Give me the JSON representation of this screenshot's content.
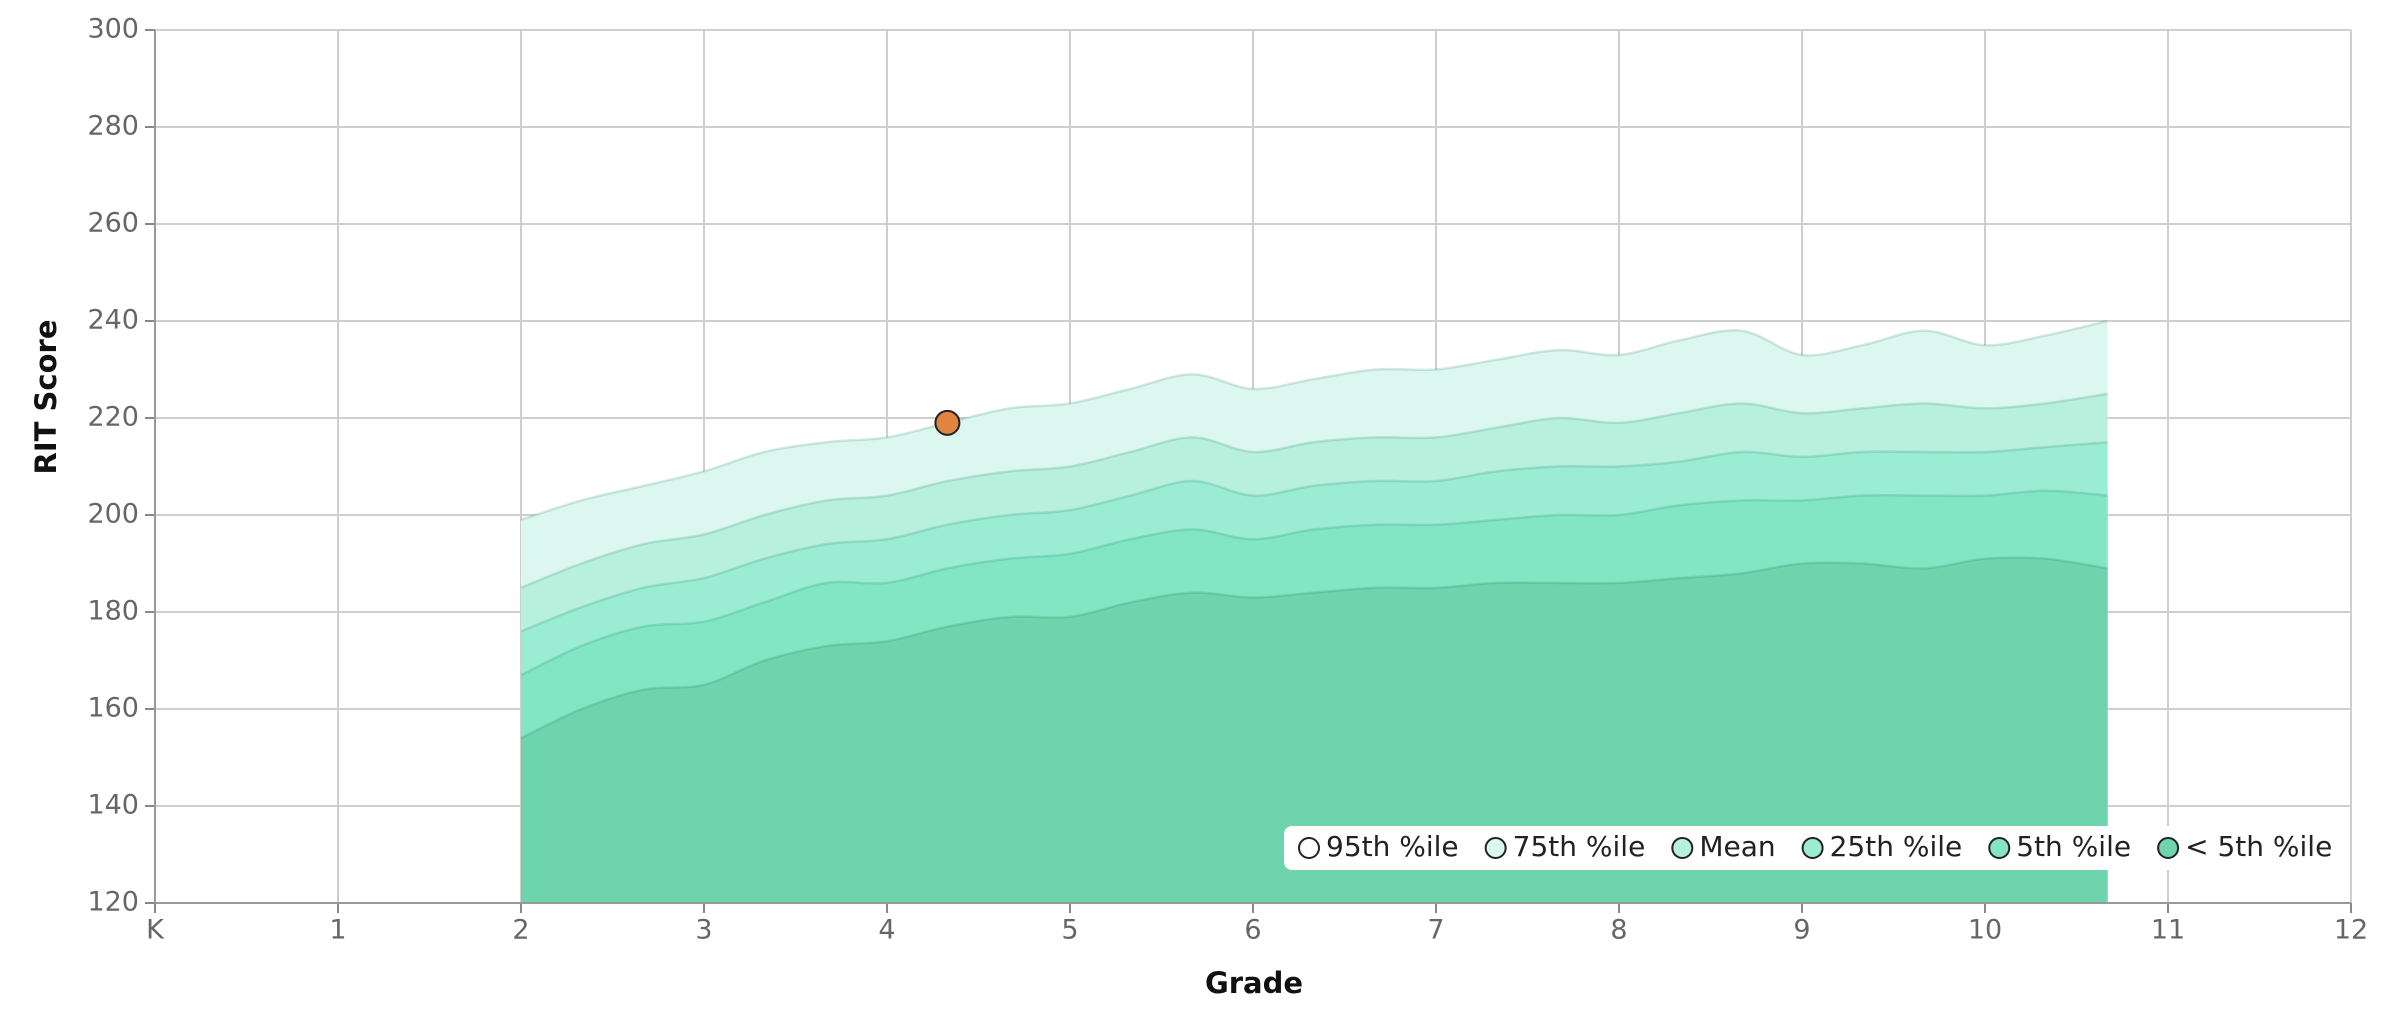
{
  "chart_data": {
    "type": "area",
    "xlabel": "Grade",
    "ylabel": "RIT Score",
    "xlim": [
      0,
      12
    ],
    "ylim": [
      120,
      300
    ],
    "xticks": [
      {
        "value": 0,
        "label": "K"
      },
      1,
      2,
      3,
      4,
      5,
      6,
      7,
      8,
      9,
      10,
      11,
      12
    ],
    "yticks": [
      120,
      140,
      160,
      180,
      200,
      220,
      240,
      260,
      280,
      300
    ],
    "grid": true,
    "legend": "lower right",
    "x": [
      2,
      2.33,
      2.67,
      3,
      3.33,
      3.67,
      4,
      4.33,
      4.67,
      5,
      5.33,
      5.67,
      6,
      6.33,
      6.67,
      7,
      7.33,
      7.67,
      8,
      8.33,
      8.67,
      9,
      9.33,
      9.67,
      10,
      10.33,
      10.67
    ],
    "series": [
      {
        "name": "95th %ile",
        "color": "#ffffff",
        "values": [
          199,
          203,
          206,
          209,
          213,
          215,
          216,
          219,
          222,
          223,
          226,
          229,
          226,
          228,
          230,
          230,
          232,
          234,
          233,
          236,
          238,
          233,
          235,
          238,
          235,
          237,
          240
        ]
      },
      {
        "name": "75th %ile",
        "color": "#dcf7ef",
        "values": [
          185,
          190,
          194,
          196,
          200,
          203,
          204,
          207,
          209,
          210,
          213,
          216,
          213,
          215,
          216,
          216,
          218,
          220,
          219,
          221,
          223,
          221,
          222,
          223,
          222,
          223,
          225
        ]
      },
      {
        "name": "Mean",
        "color": "#b8f0de",
        "values": [
          176,
          181,
          185,
          187,
          191,
          194,
          195,
          198,
          200,
          201,
          204,
          207,
          204,
          206,
          207,
          207,
          209,
          210,
          210,
          211,
          213,
          212,
          213,
          213,
          213,
          214,
          215
        ]
      },
      {
        "name": "25th %ile",
        "color": "#9aecd3",
        "values": [
          167,
          173,
          177,
          178,
          182,
          186,
          186,
          189,
          191,
          192,
          195,
          197,
          195,
          197,
          198,
          198,
          199,
          200,
          200,
          202,
          203,
          203,
          204,
          204,
          204,
          205,
          204
        ]
      },
      {
        "name": "5th %ile",
        "color": "#82e6c5",
        "values": [
          154,
          160,
          164,
          165,
          170,
          173,
          174,
          177,
          179,
          179,
          182,
          184,
          183,
          184,
          185,
          185,
          186,
          186,
          186,
          187,
          188,
          190,
          190,
          189,
          191,
          191,
          189
        ]
      }
    ],
    "floor_name": "< 5th %ile",
    "floor_color": "#6dd4ae",
    "points": [
      {
        "x": 4.33,
        "y": 219,
        "color": "#e0843f"
      }
    ]
  }
}
